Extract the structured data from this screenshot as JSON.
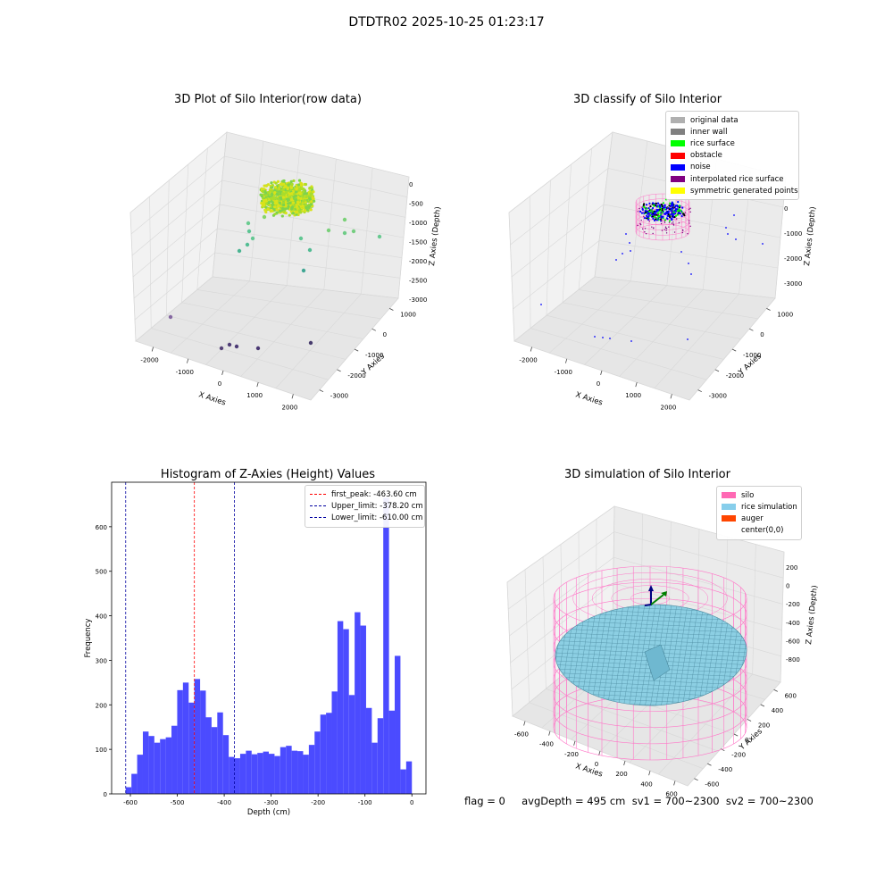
{
  "suptitle": "DTDTR02 2025-10-25 01:23:17",
  "footer": "flag = 0     avgDepth = 495 cm  sv1 = 700~2300  sv2 = 700~2300",
  "chart_data": [
    {
      "type": "scatter",
      "title": "3D Plot of Silo Interior(row data)",
      "xlabel": "X Axies",
      "ylabel": "Y Axies",
      "zlabel": "Z Axies (Depth)",
      "x_ticks": [
        "-2000",
        "-1000",
        "0",
        "1000",
        "2000"
      ],
      "y_ticks": [
        "1000",
        "0",
        "-1000",
        "-2000",
        "-3000"
      ],
      "z_ticks": [
        "0",
        "-500",
        "-1000",
        "-1500",
        "-2000",
        "-2500",
        "-3000"
      ],
      "points_sampled": [
        {
          "x": 0,
          "y": 0,
          "z": -400
        },
        {
          "x": -600,
          "y": 400,
          "z": -1100
        },
        {
          "x": -500,
          "y": 600,
          "z": -1400
        },
        {
          "x": -700,
          "y": -200,
          "z": -1600
        },
        {
          "x": 400,
          "y": -500,
          "z": -1500
        },
        {
          "x": 900,
          "y": 300,
          "z": -1050
        },
        {
          "x": 1400,
          "y": 600,
          "z": -1200
        },
        {
          "x": 600,
          "y": 100,
          "z": -1900
        },
        {
          "x": -2000,
          "y": -600,
          "z": -2900
        },
        {
          "x": 400,
          "y": -2000,
          "z": -3000
        },
        {
          "x": 800,
          "y": -2200,
          "z": -3000
        },
        {
          "x": 1600,
          "y": -2600,
          "z": -3000
        }
      ]
    },
    {
      "type": "scatter",
      "title": "3D classify of Silo Interior",
      "xlabel": "X Axies",
      "ylabel": "Y Axies",
      "zlabel": "Z Axies (Depth)",
      "x_ticks": [
        "-2000",
        "-1000",
        "0",
        "1000",
        "2000"
      ],
      "y_ticks": [
        "1000",
        "0",
        "-1000",
        "-2000",
        "-3000"
      ],
      "z_ticks": [
        "0",
        "-1000",
        "-2000",
        "-3000"
      ],
      "legend": [
        {
          "label": "original data",
          "color": "#b0b0b0"
        },
        {
          "label": "inner wall",
          "color": "#808080"
        },
        {
          "label": "rice surface",
          "color": "#00ff00"
        },
        {
          "label": "obstacle",
          "color": "#ff0000"
        },
        {
          "label": "noise",
          "color": "#0000ff"
        },
        {
          "label": "interpolated rice surface",
          "color": "#800080"
        },
        {
          "label": "symmetric generated points",
          "color": "#ffff00"
        }
      ]
    },
    {
      "type": "bar",
      "title": "Histogram of Z-Axies (Height) Values",
      "xlabel": "Depth (cm)",
      "ylabel": "Frequency",
      "xlim": [
        -640,
        30
      ],
      "ylim": [
        0,
        700
      ],
      "x_ticks": [
        -600,
        -500,
        -400,
        -300,
        -200,
        -100,
        0
      ],
      "y_ticks": [
        0,
        100,
        200,
        300,
        400,
        500,
        600
      ],
      "bin_start": -610,
      "bin_width": 12.2,
      "values": [
        15,
        45,
        88,
        140,
        130,
        115,
        123,
        127,
        153,
        233,
        250,
        205,
        258,
        232,
        172,
        150,
        183,
        132,
        83,
        80,
        90,
        97,
        89,
        92,
        95,
        90,
        85,
        105,
        108,
        97,
        96,
        88,
        110,
        140,
        178,
        182,
        230,
        388,
        370,
        222,
        408,
        378,
        193,
        115,
        170,
        665,
        187,
        310,
        55,
        73
      ],
      "lines": [
        {
          "label": "first_peak: -463.60 cm",
          "value": -463.6,
          "color": "#ff0000"
        },
        {
          "label": "Upper_limit: -378.20 cm",
          "value": -378.2,
          "color": "#0000a0"
        },
        {
          "label": "Lower_limit: -610.00 cm",
          "value": -610.0,
          "color": "#0000a0"
        }
      ]
    },
    {
      "type": "surface",
      "title": "3D simulation of Silo Interior",
      "xlabel": "X Axies",
      "ylabel": "Y Axies",
      "zlabel": "Z Axies (Depth)",
      "x_ticks": [
        "-600",
        "-400",
        "-200",
        "0",
        "200",
        "400",
        "600"
      ],
      "y_ticks": [
        "600",
        "400",
        "200",
        "0",
        "-200",
        "-400",
        "-600"
      ],
      "z_ticks": [
        "200",
        "0",
        "-200",
        "-400",
        "-600",
        "-800"
      ],
      "legend": [
        {
          "label": "silo",
          "color": "#ff69b4"
        },
        {
          "label": "rice simulation",
          "color": "#87ceeb"
        },
        {
          "label": "auger",
          "color": "#ff4500"
        },
        {
          "label": "center(0,0)",
          "color": "#ffffff"
        }
      ]
    }
  ]
}
